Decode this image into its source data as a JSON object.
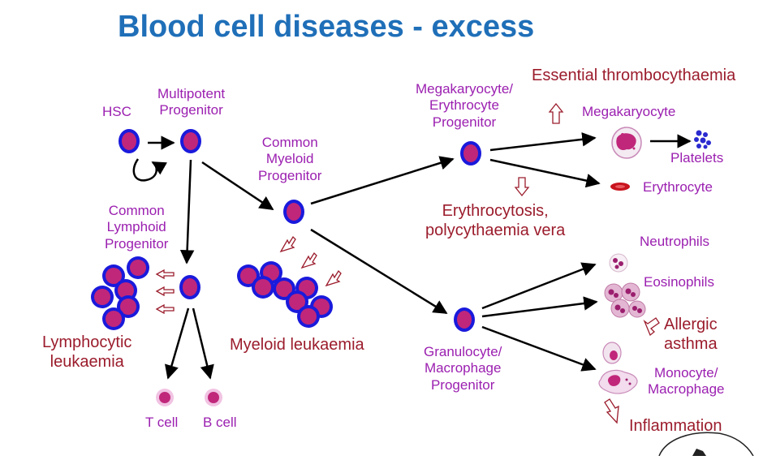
{
  "title": "Blood cell diseases - excess",
  "labels": {
    "hsc": "HSC",
    "multipotent": [
      "Multipotent",
      "Progenitor"
    ],
    "cmp": [
      "Common",
      "Myeloid",
      "Progenitor"
    ],
    "clp": [
      "Common",
      "Lymphoid",
      "Progenitor"
    ],
    "mep": [
      "Megakaryocyte/",
      "Erythrocyte",
      "Progenitor"
    ],
    "gmp": [
      "Granulocyte/",
      "Macrophage",
      "Progenitor"
    ],
    "megakaryocyte": "Megakaryocyte",
    "platelets": "Platelets",
    "erythrocyte": "Erythrocyte",
    "neutrophils": "Neutrophils",
    "eosinophils": "Eosinophils",
    "monocyte": [
      "Monocyte/",
      "Macrophage"
    ],
    "tcell": "T cell",
    "bcell": "B cell"
  },
  "diseases": {
    "essential_thrombocythaemia": "Essential thrombocythaemia",
    "erythrocytosis": [
      "Erythrocytosis,",
      "polycythaemia vera"
    ],
    "lymphocytic_leukaemia": [
      "Lymphocytic",
      "leukaemia"
    ],
    "myeloid_leukaemia": "Myeloid leukaemia",
    "allergic_asthma": [
      "Allergic",
      "asthma"
    ],
    "inflammation": "Inflammation"
  },
  "colors": {
    "title": "#1f6fb8",
    "label": "#9b1fb0",
    "disease": "#9b1c2c",
    "cell_ring": "#1a1adc",
    "cell_fill": "#c0277a",
    "platelet": "#2a2ad0",
    "erythrocyte": "#c8141e"
  }
}
